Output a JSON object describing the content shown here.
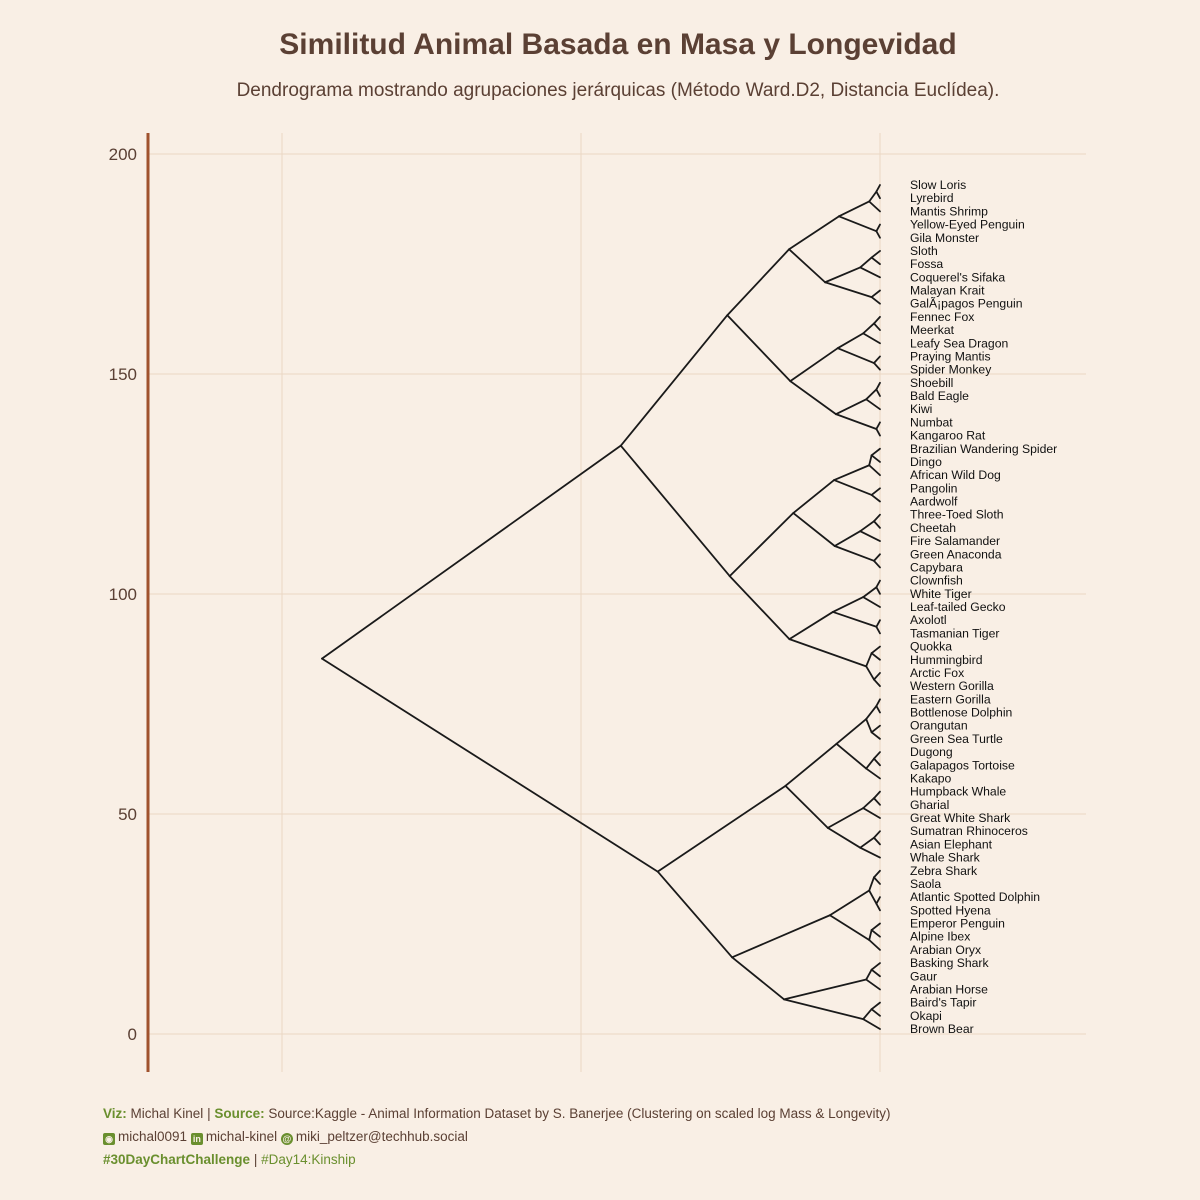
{
  "title": "Similitud Animal Basada en Masa y Longevidad",
  "subtitle": "Dendrograma mostrando agrupaciones jerárquicas (Método Ward.D2, Distancia Euclídea).",
  "chart_data": {
    "type": "dendrogram",
    "y_ticks": [
      "0",
      "50",
      "100",
      "150",
      "200"
    ],
    "ylim": [
      -8,
      205
    ],
    "grid": true,
    "colors": {
      "background": "#f9efe5",
      "grid": "#ead7c3",
      "axis": "#a0522d",
      "branch": "#1a1a1a",
      "text": "#5b4034",
      "accent": "#6a8f2e"
    },
    "leaves": [
      "Slow Loris",
      "Lyrebird",
      "Mantis Shrimp",
      "Yellow-Eyed Penguin",
      "Gila Monster",
      "Sloth",
      "Fossa",
      "Coquerel's Sifaka",
      "Malayan Krait",
      "GalÃ¡pagos Penguin",
      "Fennec Fox",
      "Meerkat",
      "Leafy Sea Dragon",
      "Praying Mantis",
      "Spider Monkey",
      "Shoebill",
      "Bald Eagle",
      "Kiwi",
      "Numbat",
      "Kangaroo Rat",
      "Brazilian Wandering Spider",
      "Dingo",
      "African Wild Dog",
      "Pangolin",
      "Aardwolf",
      "Three-Toed Sloth",
      "Cheetah",
      "Fire Salamander",
      "Green Anaconda",
      "Capybara",
      "Clownfish",
      "White Tiger",
      "Leaf-tailed Gecko",
      "Axolotl",
      "Tasmanian Tiger",
      "Quokka",
      "Hummingbird",
      "Arctic Fox",
      "Western Gorilla",
      "Eastern Gorilla",
      "Bottlenose Dolphin",
      "Orangutan",
      "Green Sea Turtle",
      "Dugong",
      "Galapagos Tortoise",
      "Kakapo",
      "Humpback Whale",
      "Gharial",
      "Great White Shark",
      "Sumatran Rhinoceros",
      "Asian Elephant",
      "Whale Shark",
      "Zebra Shark",
      "Saola",
      "Atlantic Spotted Dolphin",
      "Spotted Hyena",
      "Emperor Penguin",
      "Alpine Ibex",
      "Arabian Oryx",
      "Basking Shark",
      "Gaur",
      "Arabian Horse",
      "Baird's Tapir",
      "Okapi",
      "Brown Bear"
    ],
    "merges": [
      {
        "y": 79,
        "h": 12.5
      },
      {
        "y": 121,
        "h": 7.3
      },
      {
        "y": 37,
        "h": 5.2
      },
      {
        "y": 145,
        "h": 5.1
      },
      {
        "y": 97,
        "h": 2.1
      },
      {
        "y": 56,
        "h": 4.7
      },
      {
        "y": 18,
        "h": 2.2
      },
      {
        "y": 155,
        "h": 3.1
      },
      {
        "y": 135,
        "h": 1.0
      }
    ]
  },
  "caption": {
    "viz_label": "Viz:",
    "viz_value": "Michal Kinel",
    "source_label": "Source:",
    "source_value": "Source:Kaggle - Animal Information Dataset by S. Banerjee (Clustering on scaled log Mass & Longevity)",
    "github_icon": "github-icon",
    "github": "michal0091",
    "linkedin_icon": "linkedin-icon",
    "linkedin": "michal-kinel",
    "mastodon_icon": "mastodon-icon",
    "mastodon": "miki_peltzer@techhub.social",
    "tag1": "#30DayChartChallenge",
    "separator": "|",
    "tag2": "#Day14:Kinship"
  }
}
